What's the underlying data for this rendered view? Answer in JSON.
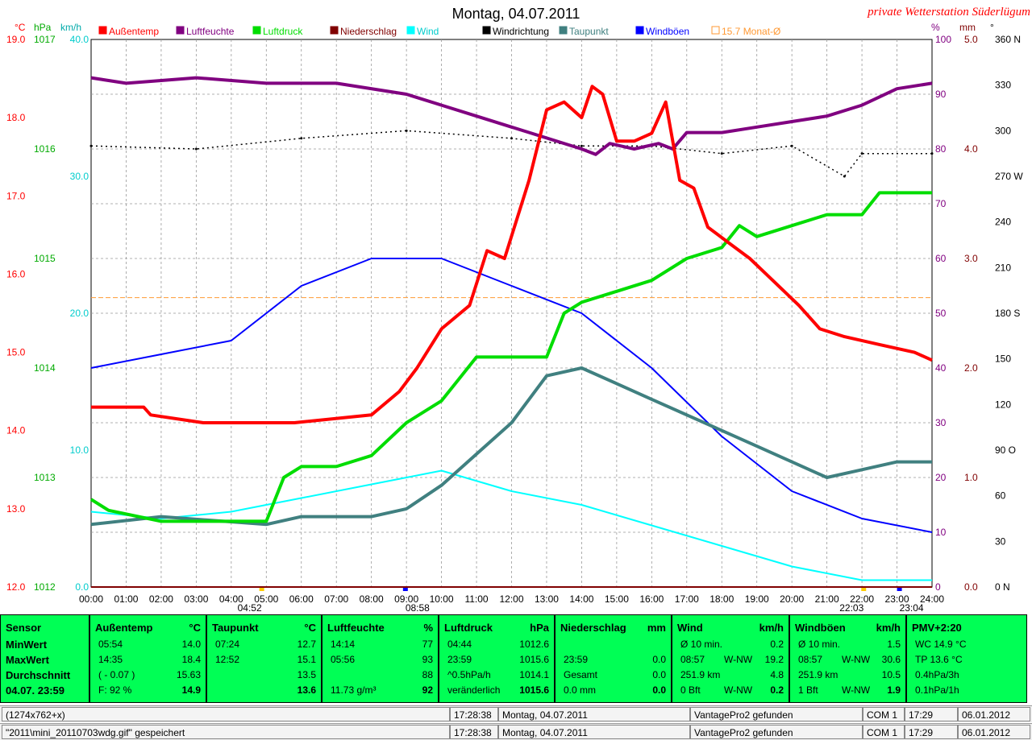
{
  "title": "Montag, 04.07.2011",
  "station": "private Wetterstation Süderlügum",
  "legend": [
    {
      "label": "Außentemp",
      "color": "#ff0000"
    },
    {
      "label": "Luftfeuchte",
      "color": "#800080"
    },
    {
      "label": "Luftdruck",
      "color": "#00dd00"
    },
    {
      "label": "Niederschlag",
      "color": "#800000"
    },
    {
      "label": "Wind",
      "color": "#00ffff"
    },
    {
      "label": "Windrichtung",
      "color": "#000000"
    },
    {
      "label": "Taupunkt",
      "color": "#408080"
    },
    {
      "label": "Windböen",
      "color": "#0000ff"
    },
    {
      "label": "15.7 Monat-Ø",
      "color": "#ff9933"
    }
  ],
  "units": {
    "temp": "°C",
    "press": "hPa",
    "wind": "km/h",
    "hum": "%",
    "rain": "mm",
    "dir": "°"
  },
  "axes": {
    "temp_ticks": [
      "19.0",
      "18.0",
      "17.0",
      "16.0",
      "15.0",
      "14.0",
      "13.0",
      "12.0"
    ],
    "press_ticks": [
      "1017",
      "1016",
      "1015",
      "1014",
      "1013",
      "1012"
    ],
    "wind_ticks": [
      "40.0",
      "30.0",
      "20.0",
      "10.0",
      "0.0"
    ],
    "hum_ticks": [
      "100",
      "90",
      "80",
      "70",
      "60",
      "50",
      "40",
      "30",
      "20",
      "10",
      "0"
    ],
    "rain_ticks": [
      "5.0",
      "4.0",
      "3.0",
      "2.0",
      "1.0",
      "0.0"
    ],
    "dir_ticks": [
      "360 N",
      "330",
      "300",
      "270 W",
      "240",
      "210",
      "180 S",
      "150",
      "120",
      "90 O",
      "60",
      "30",
      "0 N"
    ],
    "x_ticks": [
      "00:00",
      "01:00",
      "02:00",
      "03:00",
      "04:00",
      "05:00",
      "06:00",
      "07:00",
      "08:00",
      "09:00",
      "10:00",
      "11:00",
      "12:00",
      "13:00",
      "14:00",
      "15:00",
      "16:00",
      "17:00",
      "18:00",
      "19:00",
      "20:00",
      "21:00",
      "22:00",
      "23:00",
      "24:00"
    ],
    "sun_marks": [
      "04:52",
      "08:58",
      "22:03",
      "23:04"
    ]
  },
  "chart_data": {
    "type": "line",
    "title": "Montag, 04.07.2011",
    "x_unit": "hour",
    "ylim_temp": [
      12,
      19
    ],
    "ylim_press": [
      1012,
      1017
    ],
    "ylim_wind": [
      0,
      40
    ],
    "ylim_hum": [
      0,
      100
    ],
    "ylim_rain": [
      0,
      5
    ],
    "ylim_dir": [
      0,
      360
    ],
    "monthly_avg_temp": 15.7,
    "series": [
      {
        "name": "Außentemp",
        "axis": "temp",
        "x": [
          0,
          1.5,
          1.7,
          3.2,
          5.8,
          8,
          8.8,
          9.3,
          10,
          10.8,
          11.3,
          11.8,
          12.5,
          13.0,
          13.5,
          14.0,
          14.3,
          14.6,
          15.0,
          15.5,
          16.0,
          16.4,
          16.8,
          17.2,
          17.6,
          18.2,
          18.8,
          19.5,
          20.2,
          20.8,
          21.5,
          22.5,
          23.5,
          24
        ],
        "y": [
          14.3,
          14.3,
          14.2,
          14.1,
          14.1,
          14.2,
          14.5,
          14.8,
          15.3,
          15.6,
          16.3,
          16.2,
          17.2,
          18.1,
          18.2,
          18.0,
          18.4,
          18.3,
          17.7,
          17.7,
          17.8,
          18.2,
          17.2,
          17.1,
          16.6,
          16.4,
          16.2,
          15.9,
          15.6,
          15.3,
          15.2,
          15.1,
          15.0,
          14.9
        ]
      },
      {
        "name": "Luftfeuchte",
        "axis": "hum",
        "x": [
          0,
          1,
          3,
          5,
          7,
          9,
          10,
          11,
          12,
          13,
          14,
          14.4,
          14.8,
          15.5,
          16.2,
          16.6,
          17,
          18,
          19,
          20,
          21,
          22,
          23,
          24
        ],
        "y": [
          93,
          92,
          93,
          92,
          92,
          90,
          88,
          86,
          84,
          82,
          80,
          79,
          81,
          80,
          81,
          80,
          83,
          83,
          84,
          85,
          86,
          88,
          91,
          92
        ]
      },
      {
        "name": "Luftdruck",
        "axis": "press",
        "x": [
          0,
          0.5,
          2,
          3.5,
          5,
          5.5,
          6,
          7,
          8,
          9,
          10,
          10.5,
          11,
          12,
          13,
          13.5,
          14,
          15,
          16,
          17,
          18,
          18.5,
          19,
          20,
          21,
          22,
          22.5,
          23,
          24
        ],
        "y": [
          1012.8,
          1012.7,
          1012.6,
          1012.6,
          1012.6,
          1013.0,
          1013.1,
          1013.1,
          1013.2,
          1013.5,
          1013.7,
          1013.9,
          1014.1,
          1014.1,
          1014.1,
          1014.5,
          1014.6,
          1014.7,
          1014.8,
          1015.0,
          1015.1,
          1015.3,
          1015.2,
          1015.3,
          1015.4,
          1015.4,
          1015.6,
          1015.6,
          1015.6
        ]
      },
      {
        "name": "Taupunkt",
        "axis": "temp",
        "x": [
          0,
          2,
          5,
          6,
          7,
          8,
          9,
          10,
          11,
          12,
          12.5,
          13,
          14,
          15,
          16,
          17,
          18,
          19,
          20,
          21,
          22,
          23,
          24
        ],
        "y": [
          12.8,
          12.9,
          12.8,
          12.9,
          12.9,
          12.9,
          13.0,
          13.3,
          13.7,
          14.1,
          14.4,
          14.7,
          14.8,
          14.6,
          14.4,
          14.2,
          14.0,
          13.8,
          13.6,
          13.4,
          13.5,
          13.6,
          13.6
        ]
      },
      {
        "name": "Wind",
        "axis": "wind",
        "x": [
          0,
          2,
          4,
          6,
          8,
          10,
          12,
          14,
          16,
          18,
          20,
          22,
          24
        ],
        "y": [
          5.5,
          5.0,
          5.5,
          6.5,
          7.5,
          8.5,
          7.0,
          6.0,
          4.5,
          3.0,
          1.5,
          0.5,
          0.5
        ]
      },
      {
        "name": "Windböen",
        "axis": "wind",
        "x": [
          0,
          2,
          4,
          6,
          8,
          10,
          12,
          14,
          16,
          18,
          20,
          22,
          24
        ],
        "y": [
          16,
          17,
          18,
          22,
          24,
          24,
          22,
          20,
          16,
          11,
          7,
          5,
          4
        ]
      },
      {
        "name": "Niederschlag",
        "axis": "rain",
        "x": [
          0,
          24
        ],
        "y": [
          0.0,
          0.0
        ]
      },
      {
        "name": "Windrichtung",
        "axis": "dir",
        "x": [
          0,
          3,
          6,
          9,
          12,
          14,
          16,
          18,
          20,
          21.5,
          22,
          24
        ],
        "y": [
          290,
          288,
          295,
          300,
          295,
          290,
          290,
          285,
          290,
          270,
          285,
          285
        ]
      }
    ]
  },
  "panels": [
    {
      "title": "Sensor",
      "unit": "",
      "rows": [
        [
          "MinWert",
          "",
          ""
        ],
        [
          "MaxWert",
          "",
          ""
        ],
        [
          "Durchschnitt",
          "",
          ""
        ],
        [
          "04.07. 23:59",
          "",
          ""
        ]
      ]
    },
    {
      "title": "Außentemp",
      "unit": "°C",
      "rows": [
        [
          "05:54",
          "",
          "14.0"
        ],
        [
          "14:35",
          "",
          "18.4"
        ],
        [
          "( - 0.07 )",
          "",
          "15.63"
        ],
        [
          "F: 92 %",
          "",
          "14.9"
        ]
      ]
    },
    {
      "title": "Taupunkt",
      "unit": "°C",
      "rows": [
        [
          "07:24",
          "",
          "12.7"
        ],
        [
          "12:52",
          "",
          "15.1"
        ],
        [
          "",
          "",
          "13.5"
        ],
        [
          "",
          "",
          "13.6"
        ]
      ]
    },
    {
      "title": "Luftfeuchte",
      "unit": "%",
      "rows": [
        [
          "14:14",
          "",
          "77"
        ],
        [
          "05:56",
          "",
          "93"
        ],
        [
          "",
          "",
          "88"
        ],
        [
          "11.73 g/m³",
          "",
          "92"
        ]
      ]
    },
    {
      "title": "Luftdruck",
      "unit": "hPa",
      "rows": [
        [
          "04:44",
          "",
          "1012.6"
        ],
        [
          "23:59",
          "",
          "1015.6"
        ],
        [
          "^0.5hPa/h",
          "",
          "1014.1"
        ],
        [
          "veränderlich",
          "",
          "1015.6"
        ]
      ]
    },
    {
      "title": "Niederschlag",
      "unit": "mm",
      "rows": [
        [
          "",
          "",
          ""
        ],
        [
          "23:59",
          "",
          "0.0"
        ],
        [
          "Gesamt",
          "",
          "0.0"
        ],
        [
          "0.0 mm",
          "",
          "0.0"
        ]
      ]
    },
    {
      "title": "Wind",
      "unit": "km/h",
      "rows": [
        [
          "Ø 10 min.",
          "",
          "0.2"
        ],
        [
          "08:57",
          "W-NW",
          "19.2"
        ],
        [
          "251.9 km",
          "",
          "4.8"
        ],
        [
          "0 Bft",
          "W-NW",
          "0.2"
        ]
      ]
    },
    {
      "title": "Windböen",
      "unit": "km/h",
      "rows": [
        [
          "Ø 10 min.",
          "",
          "1.5"
        ],
        [
          "08:57",
          "W-NW",
          "30.6"
        ],
        [
          "251.9 km",
          "",
          "10.5"
        ],
        [
          "1 Bft",
          "W-NW",
          "1.9"
        ]
      ]
    },
    {
      "title": "PMV+2:20",
      "unit": "",
      "rows": [
        [
          "WC 14.9 °C",
          "",
          ""
        ],
        [
          "TP 13.6 °C",
          "",
          ""
        ],
        [
          "0.4hPa/3h",
          "",
          ""
        ],
        [
          "0.1hPa/1h",
          "",
          ""
        ]
      ]
    }
  ],
  "status1": [
    "(1274x762+x)",
    "17:28:38",
    "Montag, 04.07.2011",
    "VantagePro2 gefunden",
    "COM 1",
    "17:29",
    "06.01.2012"
  ],
  "status2": [
    "\"2011\\mini_20110703wdg.gif\" gespeichert",
    "17:28:38",
    "Montag, 04.07.2011",
    "VantagePro2 gefunden",
    "COM 1",
    "17:29",
    "06.01.2012"
  ]
}
